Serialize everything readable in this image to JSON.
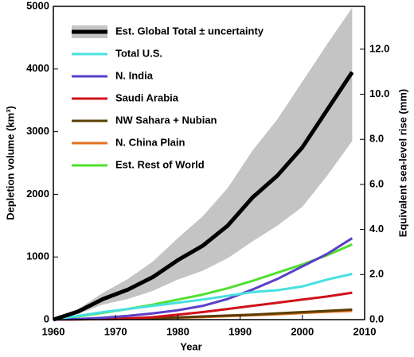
{
  "chart_data": {
    "type": "line",
    "xlabel": "Year",
    "ylabel": "Depletion volume (km³)",
    "y2label": "Equivalent sea-level rise (mm)",
    "x": [
      1960,
      1964,
      1968,
      1972,
      1976,
      1980,
      1984,
      1988,
      1992,
      1996,
      2000,
      2004,
      2008
    ],
    "xlim": [
      1960,
      2010
    ],
    "xticks": [
      1960,
      1970,
      1980,
      1990,
      2000,
      2010
    ],
    "ylim": [
      0,
      5000
    ],
    "yticks": [
      0,
      1000,
      2000,
      3000,
      4000,
      5000
    ],
    "y2lim": [
      0,
      13.9
    ],
    "y2ticks": [
      {
        "value": 0,
        "label": "0.0"
      },
      {
        "value": 2,
        "label": "2.0"
      },
      {
        "value": 4,
        "label": "4.0"
      },
      {
        "value": 6,
        "label": "6.0"
      },
      {
        "value": 8,
        "label": "8.0"
      },
      {
        "value": 10,
        "label": "10.0"
      },
      {
        "value": 12,
        "label": "12.0"
      }
    ],
    "legend": "upper left",
    "band_color": "#c4c4c4",
    "series": [
      {
        "name": "Est. Global Total ± uncertainty",
        "color": "#000000",
        "width": 5,
        "values": [
          0,
          130,
          330,
          480,
          680,
          950,
          1180,
          1500,
          1950,
          2300,
          2750,
          3350,
          3950
        ],
        "lower": [
          0,
          90,
          240,
          330,
          460,
          640,
          780,
          980,
          1250,
          1500,
          1800,
          2300,
          2850
        ],
        "upper": [
          0,
          170,
          430,
          650,
          930,
          1300,
          1650,
          2100,
          2700,
          3200,
          3800,
          4400,
          4980
        ]
      },
      {
        "name": "Total U.S.",
        "color": "#48e0e0",
        "width": 3,
        "values": [
          0,
          60,
          120,
          170,
          220,
          270,
          320,
          380,
          440,
          470,
          530,
          640,
          730
        ]
      },
      {
        "name": "N. India",
        "color": "#5a3fc8",
        "width": 3,
        "values": [
          0,
          10,
          30,
          60,
          100,
          150,
          220,
          330,
          480,
          650,
          850,
          1050,
          1300
        ]
      },
      {
        "name": "Saudi Arabia",
        "color": "#d0101a",
        "width": 3,
        "values": [
          0,
          5,
          10,
          20,
          40,
          80,
          120,
          170,
          220,
          270,
          320,
          370,
          430
        ]
      },
      {
        "name": "NW Sahara + Nubian",
        "color": "#5a3e00",
        "width": 3,
        "values": [
          0,
          5,
          10,
          15,
          25,
          35,
          50,
          65,
          80,
          100,
          120,
          140,
          160
        ]
      },
      {
        "name": "N. China Plain",
        "color": "#e07020",
        "width": 3,
        "values": [
          0,
          3,
          8,
          12,
          20,
          30,
          40,
          55,
          70,
          85,
          105,
          125,
          140
        ]
      },
      {
        "name": "Est. Rest of World",
        "color": "#50e030",
        "width": 3,
        "values": [
          0,
          50,
          110,
          170,
          240,
          320,
          400,
          500,
          620,
          750,
          880,
          1030,
          1200
        ]
      }
    ]
  }
}
